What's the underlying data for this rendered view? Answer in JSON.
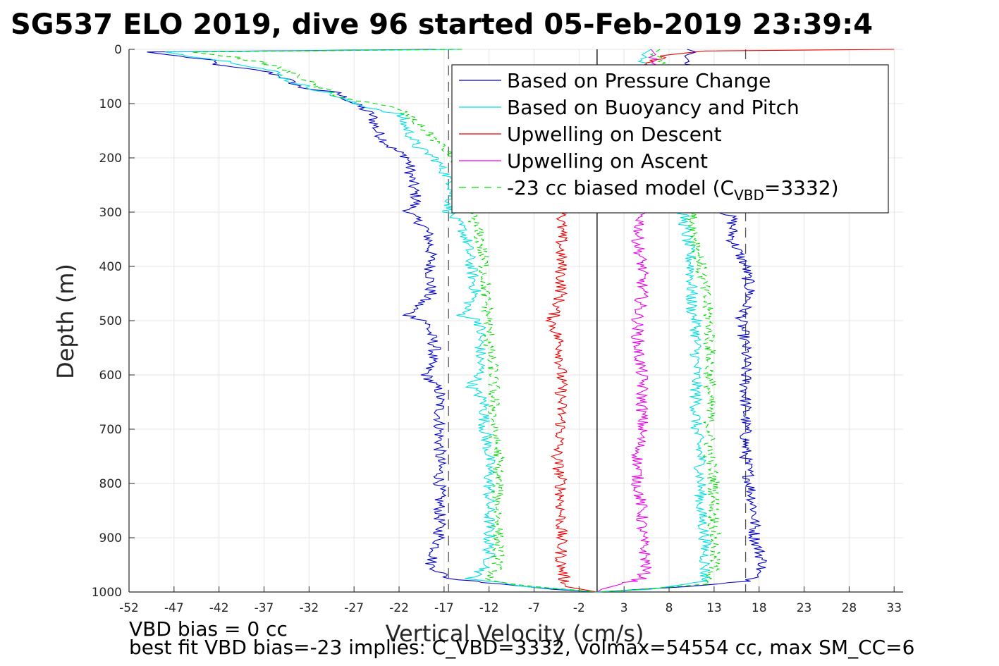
{
  "chart_data": {
    "type": "line",
    "title": "SG537 ELO 2019, dive 96 started 05-Feb-2019 23:39:4",
    "xlabel": "Vertical Velocity (cm/s)",
    "ylabel": "Depth (m)",
    "xlim": [
      -52,
      34
    ],
    "ylim": [
      0,
      1000
    ],
    "y_reversed": true,
    "x_ticks": [
      -52,
      -47,
      -42,
      -37,
      -32,
      -27,
      -22,
      -17,
      -12,
      -7,
      -2,
      3,
      8,
      13,
      18,
      23,
      28,
      33
    ],
    "y_ticks": [
      0,
      100,
      200,
      300,
      400,
      500,
      600,
      700,
      800,
      900,
      1000
    ],
    "grid": true,
    "legend_position": "top-right",
    "vertical_lines": [
      {
        "x": -16.5,
        "style": "dashed",
        "color": "#555555"
      },
      {
        "x": 0,
        "style": "solid",
        "color": "#000000"
      },
      {
        "x": 16.5,
        "style": "dashed",
        "color": "#555555"
      }
    ],
    "series": [
      {
        "name": "Based on Pressure Change",
        "color": "#0000cc",
        "style": "solid",
        "segments": [
          {
            "depth": [
              0,
              5,
              20,
              30,
              40,
              50,
              60,
              70,
              80,
              100,
              110,
              120,
              150,
              180,
              200,
              250,
              280,
              300,
              330,
              360,
              400,
              450,
              490,
              500,
              550,
              600,
              630,
              700,
              750,
              800,
              850,
              900,
              950,
              975,
              995,
              1000
            ],
            "velocity": [
              -18,
              -50,
              -43,
              -42,
              -37,
              -35,
              -34,
              -33,
              -29,
              -27,
              -26,
              -25,
              -24.5,
              -23,
              -21,
              -20.5,
              -20,
              -21,
              -19,
              -18.5,
              -18.5,
              -18.5,
              -21,
              -19,
              -18,
              -19,
              -17.5,
              -17.5,
              -17.5,
              -17.5,
              -17.5,
              -17.5,
              -18.5,
              -16.5,
              -5,
              0
            ]
          },
          {
            "depth": [
              0,
              5,
              10,
              50,
              100,
              150,
              200,
              250,
              280,
              300,
              310,
              350,
              400,
              450,
              500,
              550,
              600,
              650,
              700,
              750,
              800,
              850,
              900,
              950,
              980,
              990,
              1000
            ],
            "velocity": [
              10,
              11,
              10,
              11,
              12,
              13,
              14,
              15,
              15.5,
              14,
              15,
              15,
              16.5,
              17,
              16,
              16.5,
              16.5,
              16.5,
              16.5,
              16.5,
              17,
              17.5,
              17.5,
              18.5,
              17,
              10,
              0
            ]
          }
        ]
      },
      {
        "name": "Based on Buoyancy and Pitch",
        "color": "#00e0e0",
        "style": "solid",
        "segments": [
          {
            "depth": [
              0,
              5,
              15,
              25,
              40,
              50,
              60,
              70,
              80,
              100,
              120,
              150,
              180,
              200,
              250,
              300,
              330,
              350,
              400,
              450,
              490,
              500,
              550,
              600,
              620,
              650,
              700,
              750,
              800,
              850,
              900,
              950,
              975,
              990,
              1000
            ],
            "velocity": [
              -15,
              -48,
              -44,
              -40,
              -36,
              -35,
              -34,
              -32,
              -30,
              -27,
              -22,
              -21,
              -20,
              -18,
              -16,
              -16.5,
              -15,
              -14.5,
              -14,
              -13.5,
              -15,
              -13,
              -13,
              -13,
              -14,
              -12.5,
              -12.5,
              -12,
              -12,
              -12,
              -12,
              -12,
              -14,
              -8,
              0
            ]
          },
          {
            "depth": [
              0,
              10,
              100,
              200,
              250,
              300,
              350,
              400,
              450,
              480,
              500,
              550,
              600,
              650,
              700,
              750,
              800,
              850,
              900,
              950,
              980,
              995,
              1000
            ],
            "velocity": [
              6,
              5,
              7,
              8,
              9,
              9.5,
              10,
              10.5,
              10.5,
              10.5,
              11,
              11,
              11,
              11,
              11,
              11.5,
              11.5,
              11.5,
              12,
              12,
              12,
              6,
              0
            ]
          }
        ]
      },
      {
        "name": "Upwelling on Descent",
        "color": "#ee0000",
        "style": "solid",
        "segments": [
          {
            "depth": [
              0,
              3,
              10,
              30,
              100,
              200,
              300,
              310,
              350,
              400,
              450,
              500,
              550,
              600,
              650,
              700,
              750,
              800,
              850,
              900,
              950,
              990,
              1000
            ],
            "velocity": [
              33,
              12,
              8,
              5,
              4,
              3,
              -3,
              -4,
              -4,
              -4,
              -4,
              -5,
              -4,
              -4,
              -4,
              -4,
              -4.5,
              -4,
              -4,
              -4,
              -4,
              -3.5,
              0
            ]
          }
        ]
      },
      {
        "name": "Upwelling on Ascent",
        "color": "#ee00ee",
        "style": "solid",
        "segments": [
          {
            "depth": [
              0,
              10,
              50,
              100,
              200,
              300,
              350,
              400,
              450,
              500,
              550,
              600,
              650,
              700,
              750,
              800,
              850,
              900,
              950,
              975,
              995,
              1000
            ],
            "velocity": [
              6,
              6.5,
              6,
              6,
              5,
              5,
              4.5,
              5,
              5,
              4.5,
              4.5,
              5,
              5,
              5,
              4.5,
              4.5,
              5,
              5,
              5.5,
              5,
              0.5,
              0
            ]
          }
        ]
      },
      {
        "name": "-23 cc biased model (C_VBD=3332)",
        "legend_label": "-23 cc biased model (C",
        "legend_sub": "VBD",
        "legend_suffix": "=3332)",
        "color": "#00dd00",
        "style": "dashed",
        "segments": [
          {
            "depth": [
              0,
              5,
              15,
              30,
              50,
              70,
              90,
              110,
              150,
              200,
              250,
              300,
              350,
              400,
              430,
              450,
              500,
              550,
              600,
              650,
              700,
              750,
              800,
              850,
              900,
              950,
              980,
              990,
              1000
            ],
            "velocity": [
              -15,
              -45,
              -40,
              -36,
              -33,
              -31,
              -28,
              -22,
              -19,
              -16,
              -15,
              -14,
              -13,
              -12.5,
              -12.5,
              -12.5,
              -12,
              -12,
              -11.5,
              -11.5,
              -11.5,
              -11,
              -11,
              -11,
              -11,
              -11,
              -12,
              -7,
              0
            ]
          },
          {
            "depth": [
              0,
              10,
              20,
              100,
              200,
              300,
              350,
              400,
              450,
              500,
              550,
              600,
              650,
              700,
              750,
              800,
              850,
              900,
              950,
              985,
              995,
              1000
            ],
            "velocity": [
              7,
              6,
              7,
              8,
              9,
              10.5,
              11,
              11.5,
              12,
              12.5,
              12.5,
              12.5,
              12.5,
              12.5,
              12.5,
              13,
              13,
              13,
              13,
              12.5,
              5,
              0
            ]
          }
        ]
      }
    ]
  },
  "footnotes": {
    "line1": "VBD bias = 0 cc",
    "line2": "best fit VBD bias=-23 implies: C_VBD=3332, volmax=54554 cc, max SM_CC=6"
  }
}
